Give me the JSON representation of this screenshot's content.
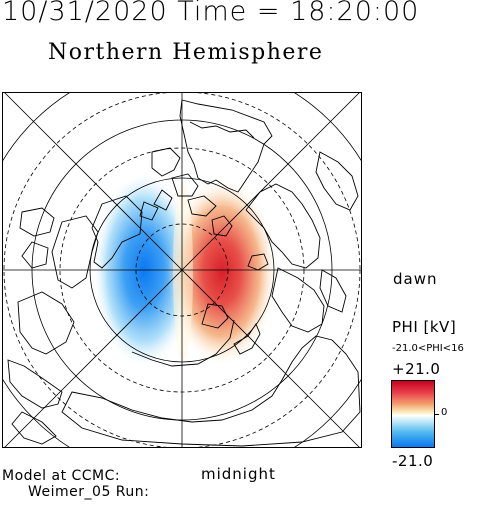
{
  "header": {
    "datetime": "10/31/2020 Time = 18:20:00",
    "hemisphere": "Northern Hemisphere"
  },
  "map": {
    "dawn_label": "dawn",
    "midnight_label": "midnight",
    "latitude_circles_solid": 3,
    "latitude_circles_dashed": 3,
    "radial_lines": 8,
    "potential_pattern": {
      "positive_cell": "dawn side (red)",
      "negative_cell": "dusk side (blue)"
    }
  },
  "colorbar": {
    "title": "PHI [kV]",
    "range_text": "-21.0<PHI<16",
    "max_label": "+21.0",
    "zero_label": "0",
    "min_label": "-21.0",
    "colors": {
      "max": "#c8001e",
      "mid": "#ffffff",
      "min": "#0a78f0"
    }
  },
  "footer": {
    "model_line_1": "Model at CCMC:",
    "model_line_2": "Weimer_05 Run:"
  }
}
